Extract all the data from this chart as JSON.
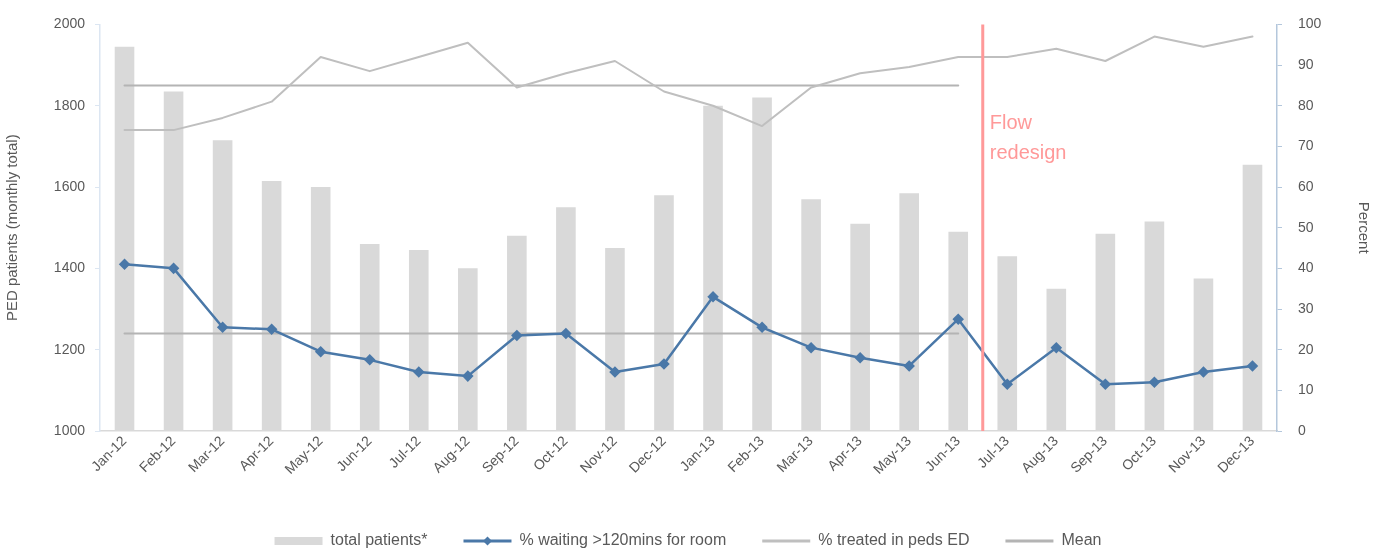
{
  "chart_data": {
    "type": "bar",
    "categories": [
      "Jan-12",
      "Feb-12",
      "Mar-12",
      "Apr-12",
      "May-12",
      "Jun-12",
      "Jul-12",
      "Aug-12",
      "Sep-12",
      "Oct-12",
      "Nov-12",
      "Dec-12",
      "Jan-13",
      "Feb-13",
      "Mar-13",
      "Apr-13",
      "May-13",
      "Jun-13",
      "Jul-13",
      "Aug-13",
      "Sep-13",
      "Oct-13",
      "Nov-13",
      "Dec-13"
    ],
    "series": [
      {
        "name": "total patients*",
        "color": "#d9d9d9",
        "values": [
          1945,
          1835,
          1715,
          1615,
          1600,
          1460,
          1445,
          1400,
          1480,
          1550,
          1450,
          1580,
          1800,
          1820,
          1570,
          1510,
          1585,
          1490,
          1430,
          1350,
          1485,
          1515,
          1375,
          1655
        ]
      },
      {
        "name": "% waiting >120mins for room",
        "type": "line",
        "axis": "y2",
        "color": "#4a78a8",
        "marker": "diamond",
        "values": [
          41,
          40,
          25.5,
          25,
          19.5,
          17.5,
          14.5,
          13.5,
          23.5,
          24,
          14.5,
          16.5,
          33,
          25.5,
          20.5,
          18,
          16,
          27.5,
          11.5,
          20.5,
          11.5,
          12,
          14.5,
          16
        ]
      },
      {
        "name": "% treated in peds ED",
        "type": "line",
        "axis": "y2",
        "color": "#bfbfbf",
        "values": [
          74,
          74,
          77,
          81,
          92,
          88.5,
          92,
          95.5,
          84.5,
          88,
          91,
          83.5,
          80,
          75,
          84.5,
          88,
          89.5,
          92,
          92,
          94,
          91,
          97,
          94.5,
          97
        ]
      },
      {
        "name": "Mean",
        "type": "line",
        "axis": "y2",
        "color": "#b4b4b4",
        "values": [
          85,
          85,
          85,
          85,
          85,
          85,
          85,
          85,
          85,
          85,
          85,
          85,
          85,
          85,
          85,
          85,
          85,
          85,
          null,
          null,
          null,
          null,
          null,
          null
        ]
      },
      {
        "type": "line",
        "axis": "y2",
        "color": "#b4b4b4",
        "values": [
          24,
          24,
          24,
          24,
          24,
          24,
          24,
          24,
          24,
          24,
          24,
          24,
          24,
          24,
          24,
          24,
          24,
          24,
          null,
          null,
          null,
          null,
          null,
          null
        ]
      }
    ],
    "ylabel": "PED patients (monthly total)",
    "y2label": "Percent",
    "ylim": [
      1000,
      2000
    ],
    "yticks": [
      1000,
      1200,
      1400,
      1600,
      1800,
      2000
    ],
    "y2lim": [
      0,
      100
    ],
    "y2ticks": [
      0,
      10,
      20,
      30,
      40,
      50,
      60,
      70,
      80,
      90,
      100
    ],
    "ref_lines": [
      {
        "axis": "x",
        "value": "Jul-13",
        "label": "Flow redesign",
        "color": "#ff9999"
      }
    ],
    "legend": "bottom",
    "grid": false
  }
}
